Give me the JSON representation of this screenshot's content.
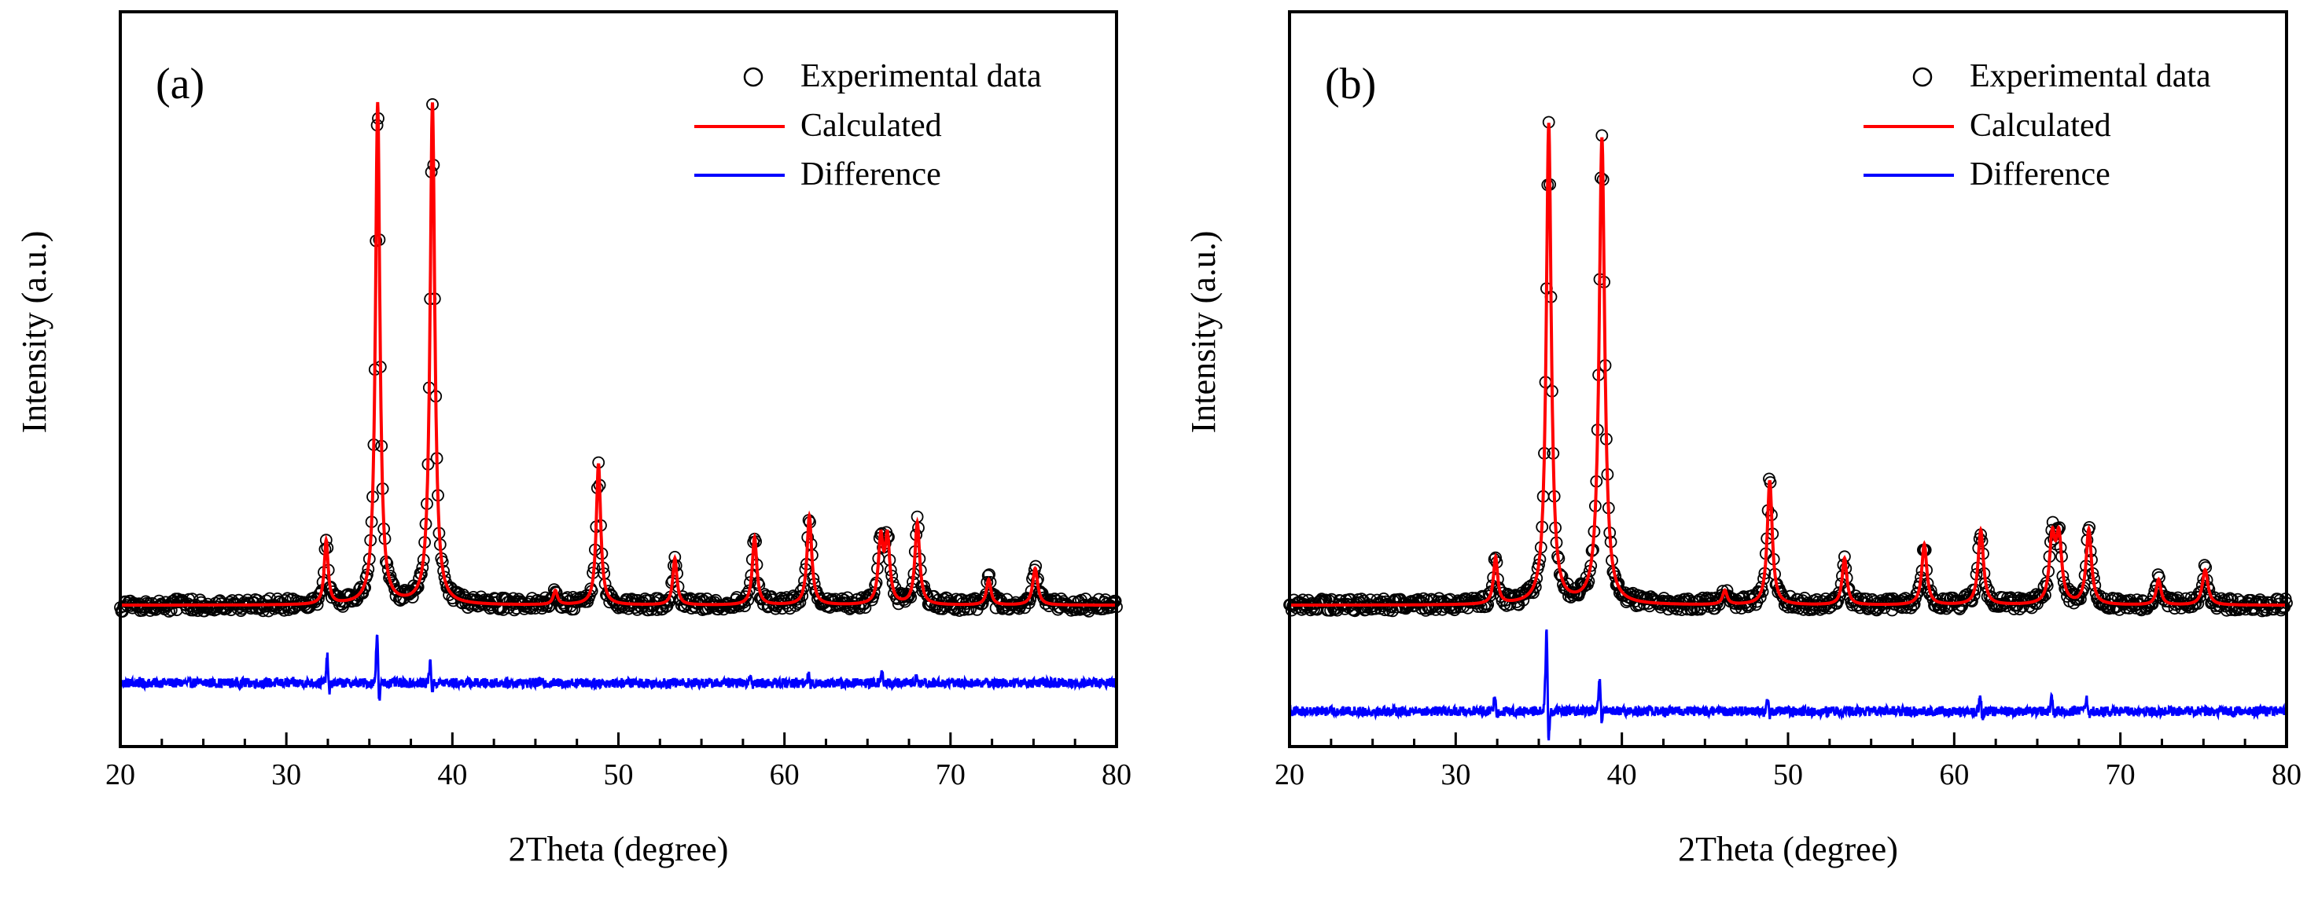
{
  "figure": {
    "description_panels": [
      "a",
      "b"
    ]
  },
  "chart_data": [
    {
      "type": "line",
      "panel_label": "(a)",
      "title": "",
      "xlabel": "2Theta (degree)",
      "ylabel": "Intensity (a.u.)",
      "xlim": [
        20,
        80
      ],
      "ylim": [
        -1.0,
        4.2
      ],
      "xticks": [
        20,
        30,
        40,
        50,
        60,
        70,
        80
      ],
      "xtick_labels": [
        "20",
        "30",
        "40",
        "50",
        "60",
        "70",
        "80"
      ],
      "grid": false,
      "legend_position": "top-right",
      "legend": [
        "Experimental data",
        "Calculated",
        "Difference"
      ],
      "baseline": 0.0,
      "difference_offset": -0.55,
      "colors": {
        "experimental": "#000000",
        "calculated": "#ff0000",
        "difference": "#0000ff"
      },
      "peaks": [
        {
          "x": 32.4,
          "height": 0.45,
          "width": 0.14
        },
        {
          "x": 35.5,
          "height": 3.55,
          "width": 0.16
        },
        {
          "x": 38.8,
          "height": 3.55,
          "width": 0.17
        },
        {
          "x": 46.2,
          "height": 0.1,
          "width": 0.15
        },
        {
          "x": 48.8,
          "height": 1.0,
          "width": 0.16
        },
        {
          "x": 53.4,
          "height": 0.33,
          "width": 0.15
        },
        {
          "x": 58.2,
          "height": 0.48,
          "width": 0.16
        },
        {
          "x": 61.5,
          "height": 0.63,
          "width": 0.17
        },
        {
          "x": 65.8,
          "height": 0.45,
          "width": 0.17
        },
        {
          "x": 66.2,
          "height": 0.45,
          "width": 0.17
        },
        {
          "x": 68.0,
          "height": 0.58,
          "width": 0.17
        },
        {
          "x": 72.3,
          "height": 0.18,
          "width": 0.16
        },
        {
          "x": 75.1,
          "height": 0.26,
          "width": 0.18
        }
      ],
      "difference_spikes": [
        {
          "x": 32.5,
          "amp": 0.18
        },
        {
          "x": 35.5,
          "amp": 0.35
        },
        {
          "x": 38.7,
          "amp": 0.14
        },
        {
          "x": 58.0,
          "amp": 0.08
        },
        {
          "x": 61.5,
          "amp": 0.06
        },
        {
          "x": 65.9,
          "amp": 0.08
        },
        {
          "x": 68.0,
          "amp": 0.06
        }
      ]
    },
    {
      "type": "line",
      "panel_label": "(b)",
      "title": "",
      "xlabel": "2Theta (degree)",
      "ylabel": "Intensity (a.u.)",
      "xlim": [
        20,
        80
      ],
      "ylim": [
        -1.0,
        4.2
      ],
      "xticks": [
        20,
        30,
        40,
        50,
        60,
        70,
        80
      ],
      "xtick_labels": [
        "20",
        "30",
        "40",
        "50",
        "60",
        "70",
        "80"
      ],
      "grid": false,
      "legend_position": "top-right",
      "legend": [
        "Experimental data",
        "Calculated",
        "Difference"
      ],
      "baseline": 0.0,
      "difference_offset": -0.75,
      "colors": {
        "experimental": "#000000",
        "calculated": "#ff0000",
        "difference": "#0000ff"
      },
      "peaks": [
        {
          "x": 32.4,
          "height": 0.33,
          "width": 0.15
        },
        {
          "x": 35.6,
          "height": 3.4,
          "width": 0.18
        },
        {
          "x": 38.8,
          "height": 3.3,
          "width": 0.2
        },
        {
          "x": 46.2,
          "height": 0.1,
          "width": 0.16
        },
        {
          "x": 48.9,
          "height": 0.88,
          "width": 0.18
        },
        {
          "x": 53.4,
          "height": 0.33,
          "width": 0.17
        },
        {
          "x": 58.2,
          "height": 0.43,
          "width": 0.18
        },
        {
          "x": 61.6,
          "height": 0.53,
          "width": 0.19
        },
        {
          "x": 65.9,
          "height": 0.45,
          "width": 0.2
        },
        {
          "x": 66.3,
          "height": 0.45,
          "width": 0.2
        },
        {
          "x": 68.1,
          "height": 0.53,
          "width": 0.19
        },
        {
          "x": 72.3,
          "height": 0.18,
          "width": 0.17
        },
        {
          "x": 75.1,
          "height": 0.25,
          "width": 0.2
        }
      ],
      "difference_spikes": [
        {
          "x": 32.4,
          "amp": 0.12
        },
        {
          "x": 35.5,
          "amp": 0.55
        },
        {
          "x": 38.7,
          "amp": 0.22
        },
        {
          "x": 48.8,
          "amp": 0.08
        },
        {
          "x": 61.6,
          "amp": 0.1
        },
        {
          "x": 65.9,
          "amp": 0.1
        },
        {
          "x": 68.0,
          "amp": 0.08
        }
      ]
    }
  ]
}
